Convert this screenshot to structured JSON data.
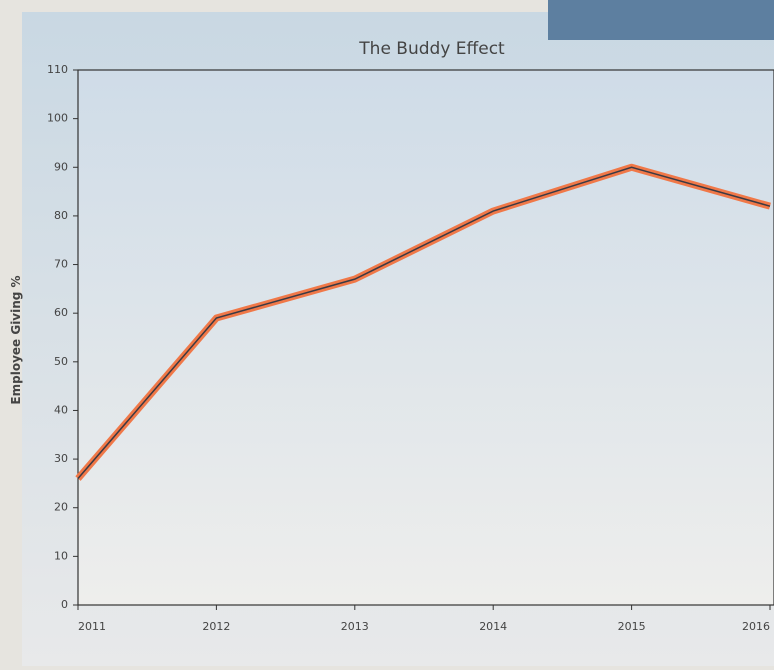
{
  "chart_data": {
    "type": "line",
    "title": "The Buddy Effect",
    "y_label": "Employee Giving %",
    "x": [
      2011,
      2012,
      2013,
      2014,
      2015,
      2016
    ],
    "xlim": [
      2011,
      2016
    ],
    "xticks": [
      2011,
      2012,
      2013,
      2014,
      2015,
      2016
    ],
    "series": [
      {
        "name": "Employee Giving %",
        "color": "#f07848",
        "values": [
          26,
          59,
          67,
          81,
          90,
          82
        ]
      }
    ],
    "ylim": [
      0,
      110
    ],
    "yticks": [
      0,
      10,
      20,
      30,
      40,
      50,
      60,
      70,
      80,
      90,
      100,
      110
    ],
    "grid": false
  }
}
